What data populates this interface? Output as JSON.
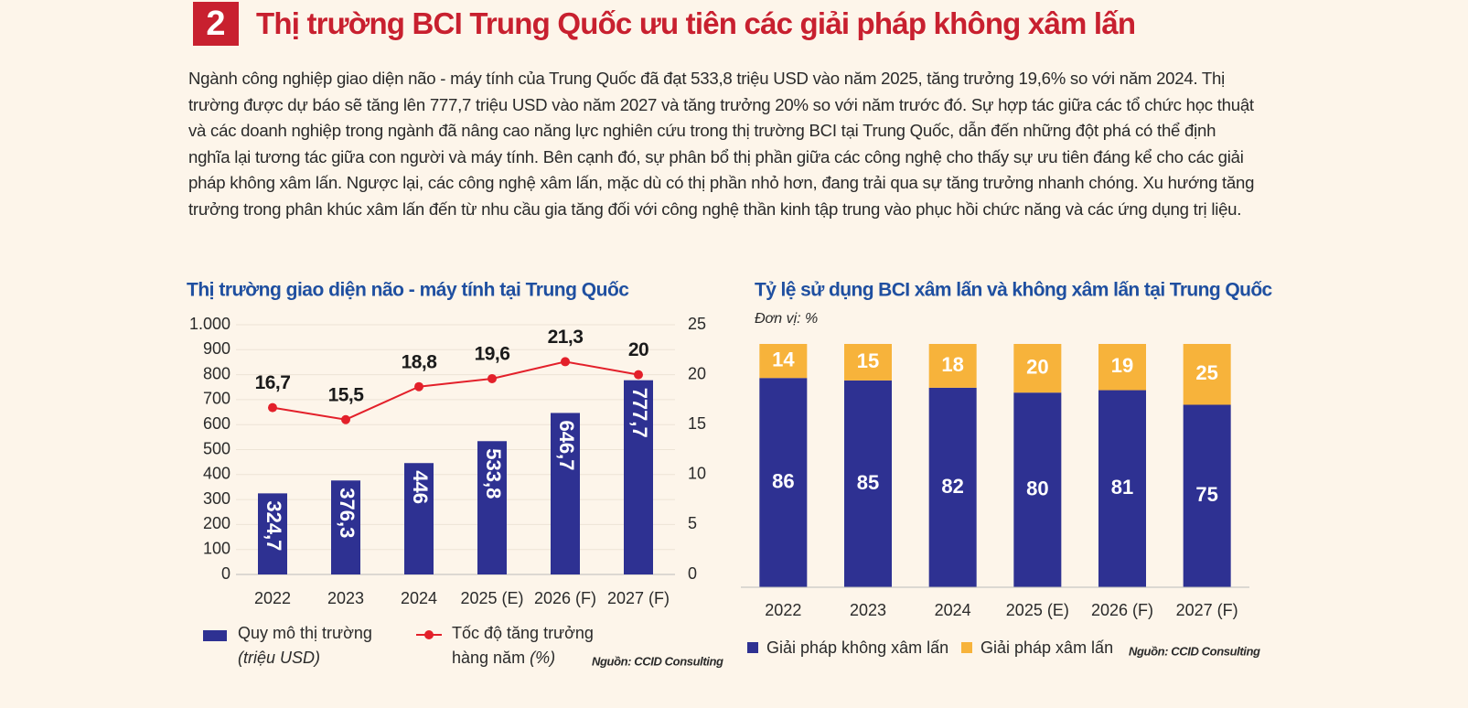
{
  "header": {
    "number": "2",
    "title": "Thị trường BCI Trung Quốc ưu tiên các giải pháp không xâm lấn"
  },
  "paragraph": "Ngành công nghiệp giao diện não - máy tính của Trung Quốc đã đạt 533,8 triệu USD vào năm 2025, tăng trưởng 19,6% so với năm 2024. Thị trường được dự báo sẽ tăng lên 777,7 triệu USD vào năm 2027 và tăng trưởng 20% so với năm trước đó. Sự hợp tác giữa các tổ chức học thuật và các doanh nghiệp trong ngành đã nâng cao năng lực nghiên cứu trong thị trường BCI tại Trung Quốc, dẫn đến những đột phá có thể định nghĩa lại tương tác giữa con người và máy tính. Bên cạnh đó, sự phân bổ thị phần giữa các công nghệ cho thấy sự ưu tiên đáng kể cho các giải pháp không xâm lấn. Ngược lại, các công nghệ xâm lấn, mặc dù có thị phần nhỏ hơn, đang trải qua sự tăng trưởng nhanh chóng. Xu hướng tăng trưởng trong phân khúc xâm lấn đến từ nhu cầu gia tăng đối với công nghệ thần kinh tập trung vào phục hồi chức năng và các ứng dụng trị liệu.",
  "chart_data": [
    {
      "type": "combo",
      "title": "Thị trường giao diện não - máy tính tại Trung Quốc",
      "categories": [
        "2022",
        "2023",
        "2024",
        "2025 (E)",
        "2026 (F)",
        "2027 (F)"
      ],
      "series": [
        {
          "name": "Quy mô thị trường",
          "unit": "(triệu USD)",
          "type": "bar",
          "color": "#2e3192",
          "values": [
            324.7,
            376.3,
            446,
            533.8,
            646.7,
            777.7
          ],
          "value_labels": [
            "324,7",
            "376,3",
            "446",
            "533,8",
            "646,7",
            "777,7"
          ]
        },
        {
          "name": "Tốc độ tăng trưởng hàng năm",
          "unit": "(%)",
          "type": "line",
          "axis": "y2",
          "color": "#e3202a",
          "values": [
            16.7,
            15.5,
            18.8,
            19.6,
            21.3,
            20
          ],
          "value_labels": [
            "16,7",
            "15,5",
            "18,8",
            "19,6",
            "21,3",
            "20"
          ]
        }
      ],
      "ylim": [
        0,
        1000
      ],
      "yticks": [
        0,
        100,
        200,
        300,
        400,
        500,
        600,
        700,
        800,
        900,
        {
          "value": 1000,
          "label": "1.000"
        }
      ],
      "y2lim": [
        0,
        25
      ],
      "y2ticks": [
        0,
        5,
        10,
        15,
        20,
        25
      ],
      "grid": true,
      "source": "Nguồn: CCID Consulting"
    },
    {
      "type": "stacked_bar",
      "title": "Tỷ lệ sử dụng BCI xâm lấn và không xâm lấn tại Trung Quốc",
      "subtitle": "Đơn vị: %",
      "categories": [
        "2022",
        "2023",
        "2024",
        "2025 (E)",
        "2026 (F)",
        "2027 (F)"
      ],
      "series": [
        {
          "name": "Giải pháp không xâm lấn",
          "color": "#2e3192",
          "values": [
            86,
            85,
            82,
            80,
            81,
            75
          ]
        },
        {
          "name": "Giải pháp xâm lấn",
          "color": "#f7b33b",
          "values": [
            14,
            15,
            18,
            20,
            19,
            25
          ]
        }
      ],
      "source": "Nguồn: CCID Consulting"
    }
  ]
}
